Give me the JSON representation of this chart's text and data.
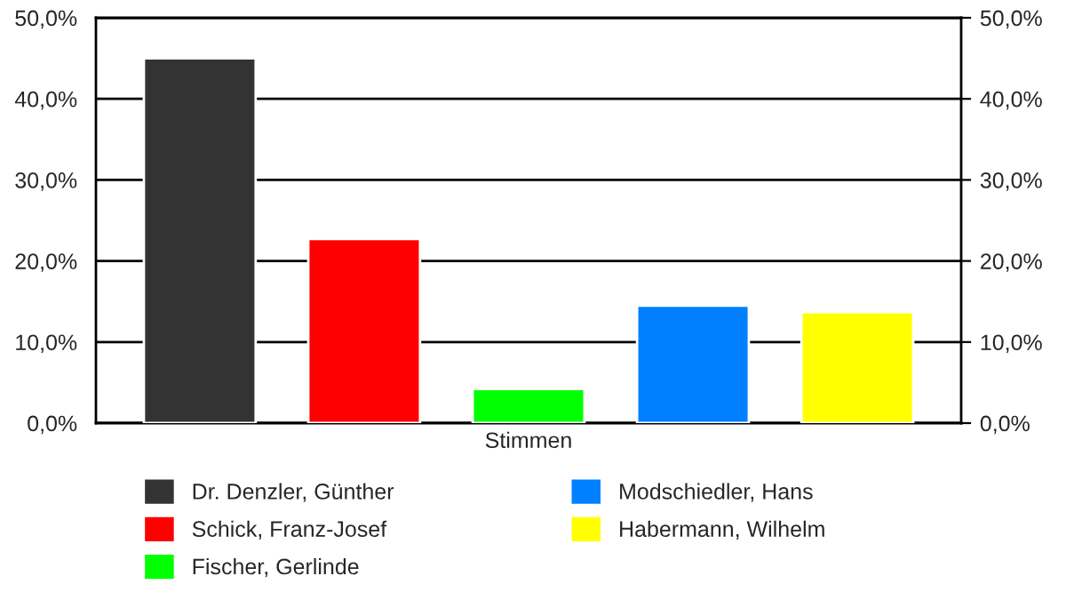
{
  "chart_data": {
    "type": "bar",
    "categories": [
      "Stimmen"
    ],
    "series": [
      {
        "name": "Dr. Denzler, Günther",
        "color": "#333333",
        "values": [
          45.0
        ]
      },
      {
        "name": "Schick, Franz-Josef",
        "color": "#ff0000",
        "values": [
          22.7
        ]
      },
      {
        "name": "Fischer, Gerlinde",
        "color": "#00ff00",
        "values": [
          4.2
        ]
      },
      {
        "name": "Modschiedler, Hans",
        "color": "#0080ff",
        "values": [
          14.5
        ]
      },
      {
        "name": "Habermann, Wilhelm",
        "color": "#ffff00",
        "values": [
          13.7
        ]
      }
    ],
    "ylim": [
      0,
      50
    ],
    "yticks": [
      {
        "value": 0,
        "label": "0,0%"
      },
      {
        "value": 10,
        "label": "10,0%"
      },
      {
        "value": 20,
        "label": "20,0%"
      },
      {
        "value": 30,
        "label": "30,0%"
      },
      {
        "value": 40,
        "label": "40,0%"
      },
      {
        "value": 50,
        "label": "50,0%"
      }
    ],
    "grid": "y",
    "legend": "bottom"
  }
}
